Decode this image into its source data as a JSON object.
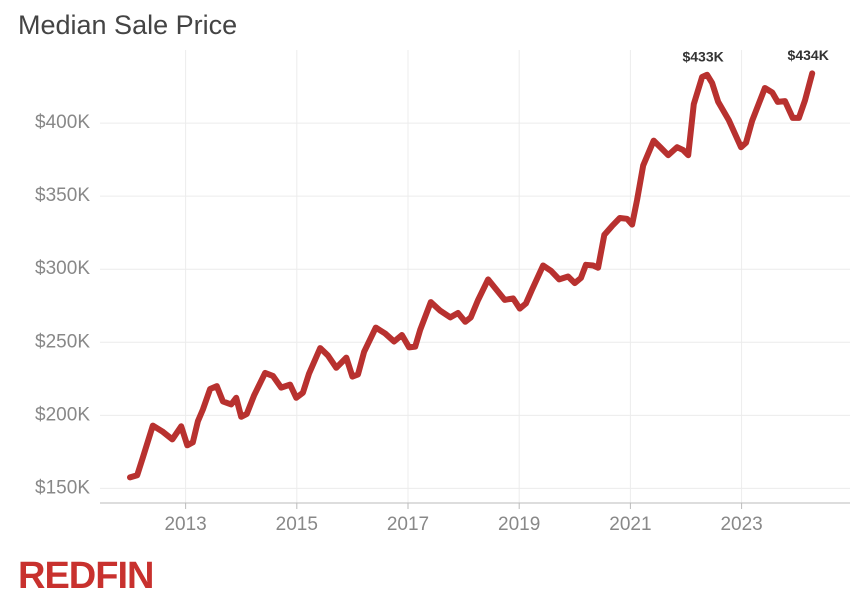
{
  "chart_data": {
    "type": "line",
    "title": "Median Sale Price",
    "logo": "REDFIN",
    "series": [
      {
        "name": "Median Sale Price",
        "color": "#b8312f",
        "x": [
          2012.0,
          2012.13,
          2012.23,
          2012.41,
          2012.58,
          2012.76,
          2012.92,
          2013.03,
          2013.13,
          2013.22,
          2013.31,
          2013.44,
          2013.56,
          2013.67,
          2013.82,
          2013.91,
          2014.0,
          2014.1,
          2014.23,
          2014.43,
          2014.57,
          2014.72,
          2014.88,
          2014.99,
          2015.11,
          2015.22,
          2015.42,
          2015.56,
          2015.71,
          2015.89,
          2016.0,
          2016.1,
          2016.21,
          2016.42,
          2016.59,
          2016.75,
          2016.89,
          2017.02,
          2017.13,
          2017.22,
          2017.41,
          2017.58,
          2017.76,
          2017.9,
          2018.03,
          2018.13,
          2018.26,
          2018.44,
          2018.6,
          2018.74,
          2018.89,
          2019.01,
          2019.12,
          2019.23,
          2019.43,
          2019.57,
          2019.72,
          2019.88,
          2020.0,
          2020.11,
          2020.2,
          2020.33,
          2020.42,
          2020.53,
          2020.67,
          2020.81,
          2020.94,
          2021.03,
          2021.12,
          2021.23,
          2021.42,
          2021.55,
          2021.68,
          2021.84,
          2021.95,
          2022.04,
          2022.14,
          2022.29,
          2022.38,
          2022.47,
          2022.58,
          2022.77,
          2022.99,
          2023.08,
          2023.19,
          2023.42,
          2023.55,
          2023.65,
          2023.78,
          2023.92,
          2024.03,
          2024.14,
          2024.27
        ],
        "values": [
          157500,
          159000,
          171000,
          193000,
          189000,
          183500,
          192500,
          179500,
          181500,
          196000,
          204000,
          218000,
          220000,
          209500,
          207500,
          212000,
          199000,
          201000,
          213500,
          229000,
          227000,
          219000,
          221000,
          212000,
          215500,
          228500,
          246000,
          241000,
          232500,
          239500,
          226500,
          228000,
          243500,
          260000,
          256000,
          250500,
          255000,
          246500,
          247000,
          258500,
          277500,
          271500,
          267000,
          270000,
          264000,
          267000,
          279000,
          293000,
          285500,
          279000,
          280000,
          273000,
          276500,
          286000,
          302500,
          299000,
          293000,
          295000,
          290500,
          294000,
          303000,
          302500,
          301000,
          323500,
          329500,
          335000,
          334500,
          330500,
          347500,
          371000,
          388000,
          383000,
          378000,
          383500,
          381500,
          378000,
          413000,
          431500,
          433000,
          427500,
          414500,
          402000,
          383500,
          386500,
          401500,
          424000,
          421000,
          414500,
          415000,
          403500,
          403500,
          415500,
          434000
        ]
      }
    ],
    "annotations": [
      {
        "x": 2022.38,
        "value": 433000,
        "label": "$433K"
      },
      {
        "x": 2024.27,
        "value": 434000,
        "label": "$434K"
      }
    ],
    "xlim": [
      2011.46,
      2024.95
    ],
    "xticks": [
      2013,
      2015,
      2017,
      2019,
      2021,
      2023
    ],
    "ylim": [
      140000,
      450000
    ],
    "yticks": [
      {
        "value": 150000,
        "label": "$150K"
      },
      {
        "value": 200000,
        "label": "$200K"
      },
      {
        "value": 250000,
        "label": "$250K"
      },
      {
        "value": 300000,
        "label": "$300K"
      },
      {
        "value": 350000,
        "label": "$350K"
      },
      {
        "value": 400000,
        "label": "$400K"
      }
    ],
    "grid": true
  }
}
